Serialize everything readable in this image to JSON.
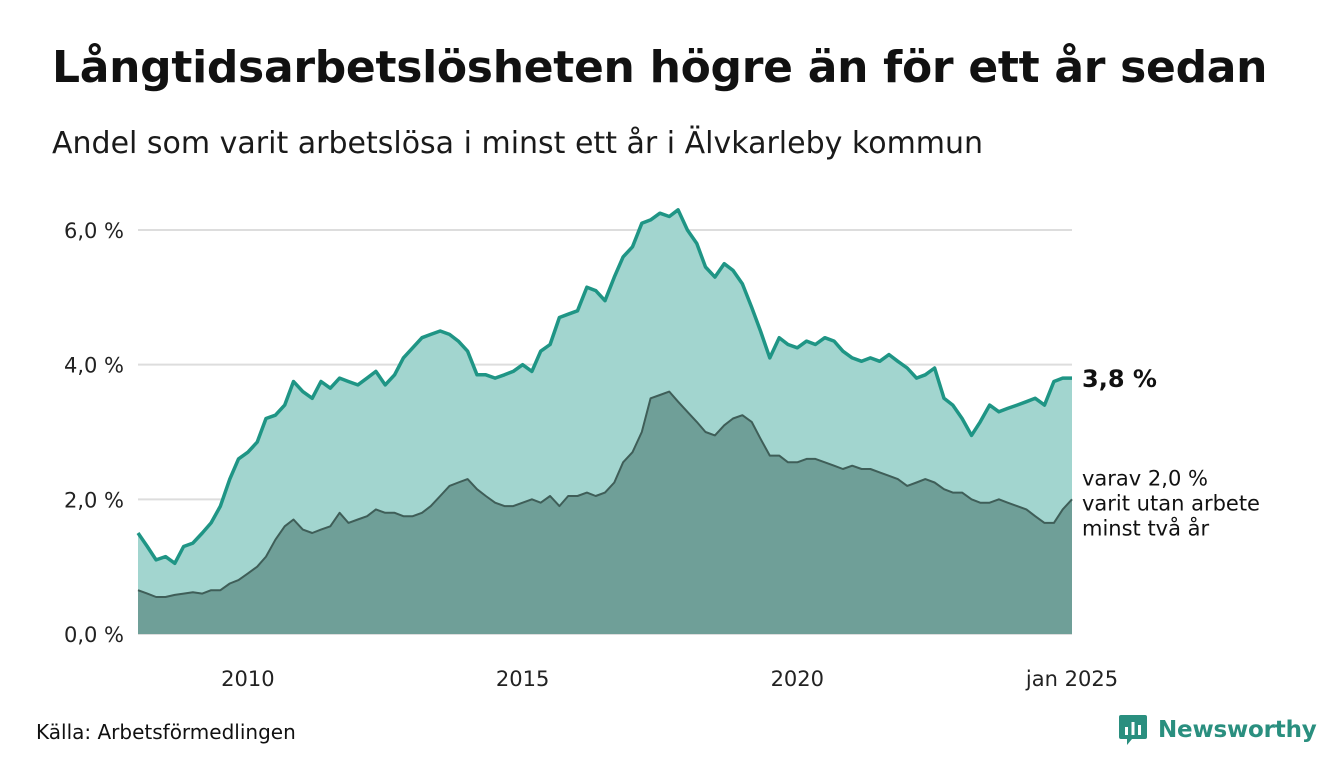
{
  "header": {
    "title": "Långtidsarbetslösheten högre än för ett år sedan",
    "subtitle": "Andel som varit arbetslösa i minst ett år i Älvkarleby kommun"
  },
  "footer": {
    "source": "Källa: Arbetsförmedlingen",
    "brand": "Newsworthy"
  },
  "colors": {
    "series_long_line": "#1f9585",
    "series_long_fill": "#a2d5cf",
    "series_twoyear_fill": "#6f9f98",
    "series_twoyear_line": "#3f5e58",
    "grid": "#dddddd",
    "brand": "#2a8f7f"
  },
  "chart_data": {
    "type": "area",
    "x_unit": "year",
    "xlim": [
      2008.0,
      2025.0
    ],
    "ylim": [
      0,
      6.5
    ],
    "y_ticks": [
      {
        "value": 0,
        "label": "0,0 %"
      },
      {
        "value": 2,
        "label": "2,0 %"
      },
      {
        "value": 4,
        "label": "4,0 %"
      },
      {
        "value": 6,
        "label": "6,0 %"
      }
    ],
    "x_ticks": [
      {
        "value": 2010,
        "label": "2010"
      },
      {
        "value": 2015,
        "label": "2015"
      },
      {
        "value": 2020,
        "label": "2020"
      },
      {
        "value": 2025,
        "label": "jan 2025"
      }
    ],
    "grid": true,
    "end_labels": {
      "main": "3,8 %",
      "sub_lines": [
        "varav 2,0 %",
        "varit utan arbete",
        "minst två år"
      ]
    },
    "series": [
      {
        "key": "long",
        "x": [
          2008.0,
          2008.17,
          2008.33,
          2008.5,
          2008.67,
          2008.83,
          2009.0,
          2009.17,
          2009.33,
          2009.5,
          2009.67,
          2009.83,
          2010.0,
          2010.17,
          2010.33,
          2010.5,
          2010.67,
          2010.83,
          2011.0,
          2011.17,
          2011.33,
          2011.5,
          2011.67,
          2011.83,
          2012.0,
          2012.17,
          2012.33,
          2012.5,
          2012.67,
          2012.83,
          2013.0,
          2013.17,
          2013.33,
          2013.5,
          2013.67,
          2013.83,
          2014.0,
          2014.17,
          2014.33,
          2014.5,
          2014.67,
          2014.83,
          2015.0,
          2015.17,
          2015.33,
          2015.5,
          2015.67,
          2015.83,
          2016.0,
          2016.17,
          2016.33,
          2016.5,
          2016.67,
          2016.83,
          2017.0,
          2017.17,
          2017.33,
          2017.5,
          2017.67,
          2017.83,
          2018.0,
          2018.17,
          2018.33,
          2018.5,
          2018.67,
          2018.83,
          2019.0,
          2019.17,
          2019.33,
          2019.5,
          2019.67,
          2019.83,
          2020.0,
          2020.17,
          2020.33,
          2020.5,
          2020.67,
          2020.83,
          2021.0,
          2021.17,
          2021.33,
          2021.5,
          2021.67,
          2021.83,
          2022.0,
          2022.17,
          2022.33,
          2022.5,
          2022.67,
          2022.83,
          2023.0,
          2023.17,
          2023.33,
          2023.5,
          2023.67,
          2023.83,
          2024.0,
          2024.17,
          2024.33,
          2024.5,
          2024.67,
          2024.83,
          2025.0
        ],
        "values": [
          1.5,
          1.3,
          1.1,
          1.15,
          1.05,
          1.3,
          1.35,
          1.5,
          1.65,
          1.9,
          2.3,
          2.6,
          2.7,
          2.85,
          3.2,
          3.25,
          3.4,
          3.75,
          3.6,
          3.5,
          3.75,
          3.65,
          3.8,
          3.75,
          3.7,
          3.8,
          3.9,
          3.7,
          3.85,
          4.1,
          4.25,
          4.4,
          4.45,
          4.5,
          4.45,
          4.35,
          4.2,
          3.85,
          3.85,
          3.8,
          3.85,
          3.9,
          4.0,
          3.9,
          4.2,
          4.3,
          4.7,
          4.75,
          4.8,
          5.15,
          5.1,
          4.95,
          5.3,
          5.6,
          5.75,
          6.1,
          6.15,
          6.25,
          6.2,
          6.3,
          6.0,
          5.8,
          5.45,
          5.3,
          5.5,
          5.4,
          5.2,
          4.85,
          4.5,
          4.1,
          4.4,
          4.3,
          4.25,
          4.35,
          4.3,
          4.4,
          4.35,
          4.2,
          4.1,
          4.05,
          4.1,
          4.05,
          4.15,
          4.05,
          3.95,
          3.8,
          3.85,
          3.95,
          3.5,
          3.4,
          3.2,
          2.95,
          3.15,
          3.4,
          3.3,
          3.35,
          3.4,
          3.45,
          3.5,
          3.4,
          3.75,
          3.8,
          3.8
        ]
      },
      {
        "key": "twoyear",
        "x": [
          2008.0,
          2008.17,
          2008.33,
          2008.5,
          2008.67,
          2008.83,
          2009.0,
          2009.17,
          2009.33,
          2009.5,
          2009.67,
          2009.83,
          2010.0,
          2010.17,
          2010.33,
          2010.5,
          2010.67,
          2010.83,
          2011.0,
          2011.17,
          2011.33,
          2011.5,
          2011.67,
          2011.83,
          2012.0,
          2012.17,
          2012.33,
          2012.5,
          2012.67,
          2012.83,
          2013.0,
          2013.17,
          2013.33,
          2013.5,
          2013.67,
          2013.83,
          2014.0,
          2014.17,
          2014.33,
          2014.5,
          2014.67,
          2014.83,
          2015.0,
          2015.17,
          2015.33,
          2015.5,
          2015.67,
          2015.83,
          2016.0,
          2016.17,
          2016.33,
          2016.5,
          2016.67,
          2016.83,
          2017.0,
          2017.17,
          2017.33,
          2017.5,
          2017.67,
          2017.83,
          2018.0,
          2018.17,
          2018.33,
          2018.5,
          2018.67,
          2018.83,
          2019.0,
          2019.17,
          2019.33,
          2019.5,
          2019.67,
          2019.83,
          2020.0,
          2020.17,
          2020.33,
          2020.5,
          2020.67,
          2020.83,
          2021.0,
          2021.17,
          2021.33,
          2021.5,
          2021.67,
          2021.83,
          2022.0,
          2022.17,
          2022.33,
          2022.5,
          2022.67,
          2022.83,
          2023.0,
          2023.17,
          2023.33,
          2023.5,
          2023.67,
          2023.83,
          2024.0,
          2024.17,
          2024.33,
          2024.5,
          2024.67,
          2024.83,
          2025.0
        ],
        "values": [
          0.65,
          0.6,
          0.55,
          0.55,
          0.58,
          0.6,
          0.62,
          0.6,
          0.65,
          0.65,
          0.75,
          0.8,
          0.9,
          1.0,
          1.15,
          1.4,
          1.6,
          1.7,
          1.55,
          1.5,
          1.55,
          1.6,
          1.8,
          1.65,
          1.7,
          1.75,
          1.85,
          1.8,
          1.8,
          1.75,
          1.75,
          1.8,
          1.9,
          2.05,
          2.2,
          2.25,
          2.3,
          2.15,
          2.05,
          1.95,
          1.9,
          1.9,
          1.95,
          2.0,
          1.95,
          2.05,
          1.9,
          2.05,
          2.05,
          2.1,
          2.05,
          2.1,
          2.25,
          2.55,
          2.7,
          3.0,
          3.5,
          3.55,
          3.6,
          3.45,
          3.3,
          3.15,
          3.0,
          2.95,
          3.1,
          3.2,
          3.25,
          3.15,
          2.9,
          2.65,
          2.65,
          2.55,
          2.55,
          2.6,
          2.6,
          2.55,
          2.5,
          2.45,
          2.5,
          2.45,
          2.45,
          2.4,
          2.35,
          2.3,
          2.2,
          2.25,
          2.3,
          2.25,
          2.15,
          2.1,
          2.1,
          2.0,
          1.95,
          1.95,
          2.0,
          1.95,
          1.9,
          1.85,
          1.75,
          1.65,
          1.65,
          1.85,
          2.0
        ]
      }
    ]
  }
}
